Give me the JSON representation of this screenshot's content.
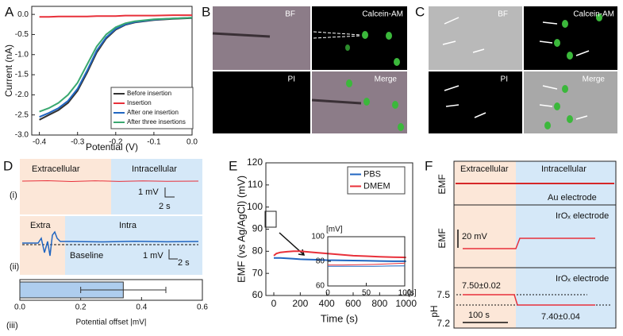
{
  "chart_data": [
    {
      "type": "line",
      "xlabel": "Potential (V)",
      "ylabel": "Current (nA)",
      "x": [
        -0.4,
        -0.375,
        -0.35,
        -0.325,
        -0.3,
        -0.275,
        -0.25,
        -0.225,
        -0.2,
        -0.175,
        -0.15,
        -0.1,
        -0.05,
        0
      ],
      "series": [
        {
          "name": "Before insertion",
          "color": "#333333",
          "values": [
            -2.62,
            -2.5,
            -2.38,
            -2.2,
            -1.9,
            -1.45,
            -0.95,
            -0.6,
            -0.38,
            -0.26,
            -0.2,
            -0.14,
            -0.11,
            -0.09
          ]
        },
        {
          "name": "Insertion",
          "color": "#e8303a",
          "values": [
            -0.06,
            -0.06,
            -0.05,
            -0.05,
            -0.05,
            -0.05,
            -0.04,
            -0.04,
            -0.04,
            -0.03,
            -0.03,
            -0.03,
            -0.02,
            -0.02
          ]
        },
        {
          "name": "After one insertion",
          "color": "#2166c1",
          "values": [
            -2.55,
            -2.45,
            -2.33,
            -2.15,
            -1.85,
            -1.4,
            -0.9,
            -0.57,
            -0.36,
            -0.25,
            -0.19,
            -0.13,
            -0.1,
            -0.08
          ]
        },
        {
          "name": "After three insertions",
          "color": "#3aa870",
          "values": [
            -2.42,
            -2.33,
            -2.2,
            -2.0,
            -1.7,
            -1.25,
            -0.8,
            -0.5,
            -0.32,
            -0.22,
            -0.17,
            -0.12,
            -0.1,
            -0.08
          ]
        }
      ],
      "xlim": [
        -0.42,
        0.0
      ],
      "ylim": [
        -3.0,
        0.2
      ],
      "xticks": [
        -0.4,
        -0.3,
        -0.2,
        -0.1,
        {
          "value": 0,
          "label": "0.0"
        }
      ],
      "yticks": [
        {
          "value": 0,
          "label": "0.0"
        },
        -0.5,
        {
          "value": -1,
          "label": "-1.0"
        },
        -1.5,
        {
          "value": -2,
          "label": "-2.0"
        },
        -2.5,
        {
          "value": -3,
          "label": "-3.0"
        }
      ],
      "legend": "lower right"
    },
    {
      "type": "line",
      "xlabel": "Time (s)",
      "ylabel": "EMF (vs Ag/AgCl) (mV)",
      "x": [
        0,
        20,
        50,
        100,
        150,
        200,
        300,
        400,
        500,
        600,
        700,
        800,
        900,
        1000
      ],
      "series": [
        {
          "name": "PBS",
          "color": "#2166c1",
          "values": [
            77,
            77,
            77,
            76.8,
            76.6,
            76.4,
            76.2,
            76,
            75.9,
            75.8,
            75.7,
            75.6,
            75.5,
            75.5
          ]
        },
        {
          "name": "DMEM",
          "color": "#e8303a",
          "values": [
            78,
            79,
            79.5,
            79.8,
            80,
            80,
            79.5,
            79,
            78.5,
            78,
            77.8,
            77.5,
            77.3,
            77.2
          ]
        }
      ],
      "xlim": [
        -60,
        1050
      ],
      "ylim": [
        60,
        120
      ],
      "xticks": [
        0,
        200,
        400,
        600,
        800,
        1000
      ],
      "yticks": [
        60,
        70,
        80,
        90,
        100,
        110,
        120
      ],
      "legend": "upper right"
    },
    {
      "type": "line",
      "xunit": "[s]",
      "yunit": "[mV]",
      "x": [
        0,
        20,
        40,
        60,
        80,
        100
      ],
      "series": [
        {
          "name": "PBS",
          "color": "#2166c1",
          "values": [
            76,
            76,
            76,
            76,
            76.2,
            76.3
          ]
        },
        {
          "name": "DMEM",
          "color": "#e8303a",
          "values": [
            77,
            77,
            77.2,
            77.5,
            78,
            78.5
          ]
        }
      ],
      "xlim": [
        0,
        100
      ],
      "ylim": [
        60,
        100
      ],
      "xticks": [
        0,
        50,
        100
      ],
      "yticks": [
        60,
        80,
        100
      ]
    },
    {
      "type": "barh",
      "label": "(iii)",
      "xlabel": "Potential offset |mV|",
      "categories": [
        null
      ],
      "values": [
        0.34
      ],
      "errors": [
        0.14
      ],
      "color": "#aecdee",
      "xlim": [
        0,
        0.6
      ],
      "xticks": [
        {
          "value": 0,
          "label": "0.0"
        },
        0.2,
        0.4,
        0.6
      ]
    }
  ],
  "labels": {
    "panels": [
      "A",
      "B",
      "C",
      "D",
      "E",
      "F"
    ],
    "micro": [
      "BF",
      "Calcein-AM",
      "PI",
      "Merge"
    ],
    "d": {
      "extracellular": "Extracellular",
      "intracellular": "Intracellular",
      "i": "(i)",
      "ii": "(ii)",
      "scale_v": "1 mV",
      "scale_t": "2 s",
      "extra": "Extra",
      "intra": "Intra",
      "baseline": "Baseline"
    },
    "f": {
      "extracellular": "Extracellular",
      "intracellular": "Intracellular",
      "emf": "EMF",
      "ph": "pH",
      "au": "Au electrode",
      "irox": "IrOₓ electrode",
      "scale_v": "20 mV",
      "scale_t": "100 s",
      "ph_before": "7.50±0.02",
      "ph_after": "7.40±0.04",
      "ph_ticks": [
        7.5,
        7.2
      ]
    }
  }
}
